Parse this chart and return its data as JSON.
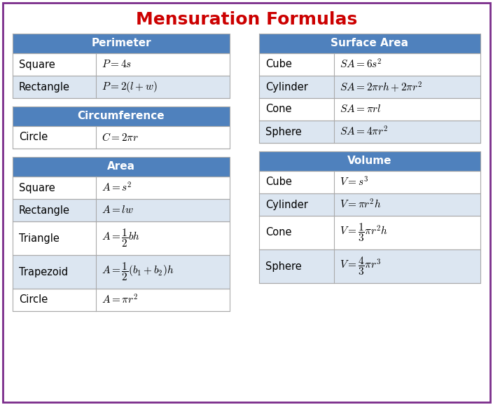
{
  "title": "Mensuration Formulas",
  "title_color": "#CC0000",
  "title_fontsize": 18,
  "header_bg": "#4F81BD",
  "header_text_color": "#FFFFFF",
  "row_bg_white": "#FFFFFF",
  "row_bg_alt": "#DCE6F1",
  "outer_border_color": "#7B2D8B",
  "fig_bg": "#FFFFFF",
  "line_color": "#AAAAAA",
  "perimeter": {
    "header": "Perimeter",
    "rows": [
      [
        "Square",
        "$P = 4s$",
        32
      ],
      [
        "Rectangle",
        "$P = 2(l+w)$",
        32
      ]
    ]
  },
  "circumference": {
    "header": "Circumference",
    "rows": [
      [
        "Circle",
        "$C = 2\\pi r$",
        32
      ]
    ]
  },
  "area": {
    "header": "Area",
    "rows": [
      [
        "Square",
        "$A = s^{2}$",
        32
      ],
      [
        "Rectangle",
        "$A = lw$",
        32
      ],
      [
        "Triangle",
        "$A = \\dfrac{1}{2}bh$",
        48
      ],
      [
        "Trapezoid",
        "$A = \\dfrac{1}{2}(b_1+b_2)h$",
        48
      ],
      [
        "Circle",
        "$A = \\pi r^{2}$",
        32
      ]
    ]
  },
  "surface_area": {
    "header": "Surface Area",
    "rows": [
      [
        "Cube",
        "$SA = 6s^{2}$",
        32
      ],
      [
        "Cylinder",
        "$SA = 2\\pi rh + 2\\pi r^{2}$",
        32
      ],
      [
        "Cone",
        "$SA = \\pi rl$",
        32
      ],
      [
        "Sphere",
        "$SA = 4\\pi r^{2}$",
        32
      ]
    ]
  },
  "volume": {
    "header": "Volume",
    "rows": [
      [
        "Cube",
        "$V = s^{3}$",
        32
      ],
      [
        "Cylinder",
        "$V = \\pi r^{2}h$",
        32
      ],
      [
        "Cone",
        "$V = \\dfrac{1}{3}\\pi r^{2}h$",
        48
      ],
      [
        "Sphere",
        "$V = \\dfrac{4}{3}\\pi r^{3}$",
        48
      ]
    ]
  }
}
